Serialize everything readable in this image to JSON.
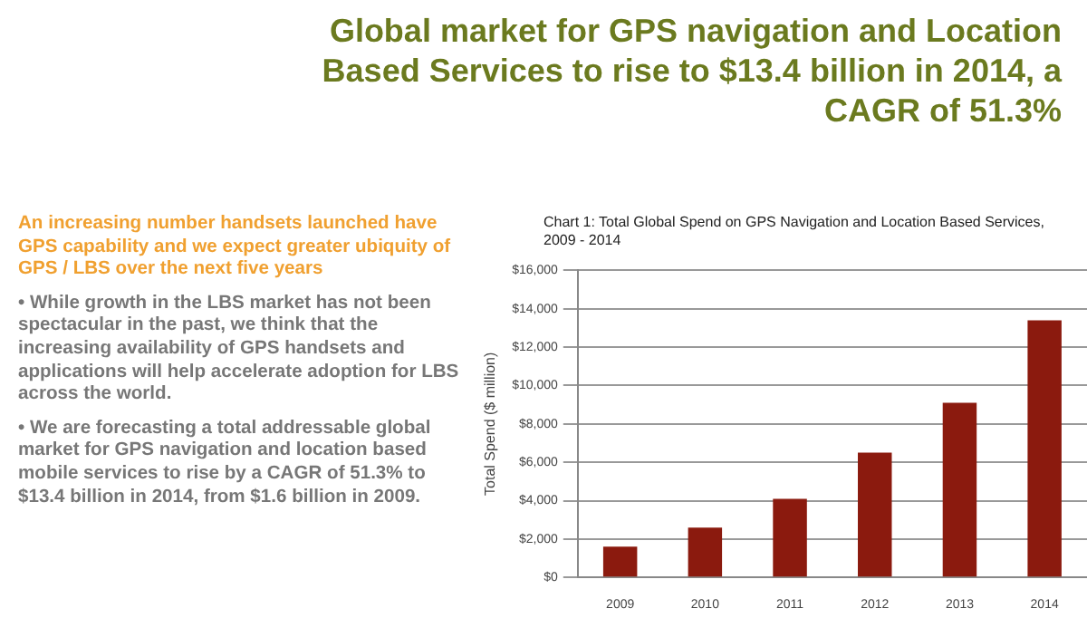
{
  "chart_data": {
    "type": "bar",
    "title": "Global market for GPS navigation and Location Based Services to rise to $13.4 billion in 2014, a CAGR of 51.3%",
    "subtitle": "Chart 1: Total Global Spend on GPS Navigation and Location Based Services, 2009 - 2014",
    "annotations": [
      "An increasing number handsets launched have GPS capability and we expect greater ubiquity of GPS / LBS over the next five years",
      "• While growth in the LBS market has not been spectacular in the past, we think that the increasing availability of GPS handsets and applications will help accelerate adoption for LBS across the world.",
      "• We are forecasting a total addressable global market for GPS navigation and location based mobile services to rise by a CAGR of 51.3% to $13.4 billion in 2014, from $1.6 billion in 2009."
    ],
    "ylabel": "Total Spend ($ million)",
    "categories": [
      "2009",
      "2010",
      "2011",
      "2012",
      "2013",
      "2014"
    ],
    "values": [
      1600,
      2600,
      4100,
      6500,
      9100,
      13400
    ],
    "color": "#8b1a0e",
    "ylim": [
      0,
      16000
    ],
    "yticks": [
      {
        "value": 0,
        "label": "$0"
      },
      {
        "value": 2000,
        "label": "$2,000"
      },
      {
        "value": 4000,
        "label": "$4,000"
      },
      {
        "value": 6000,
        "label": "$6,000"
      },
      {
        "value": 8000,
        "label": "$8,000"
      },
      {
        "value": 10000,
        "label": "$10,000"
      },
      {
        "value": 12000,
        "label": "$12,000"
      },
      {
        "value": 14000,
        "label": "$14,000"
      },
      {
        "value": 16000,
        "label": "$16,000"
      }
    ],
    "grid": "y",
    "legend": false
  }
}
